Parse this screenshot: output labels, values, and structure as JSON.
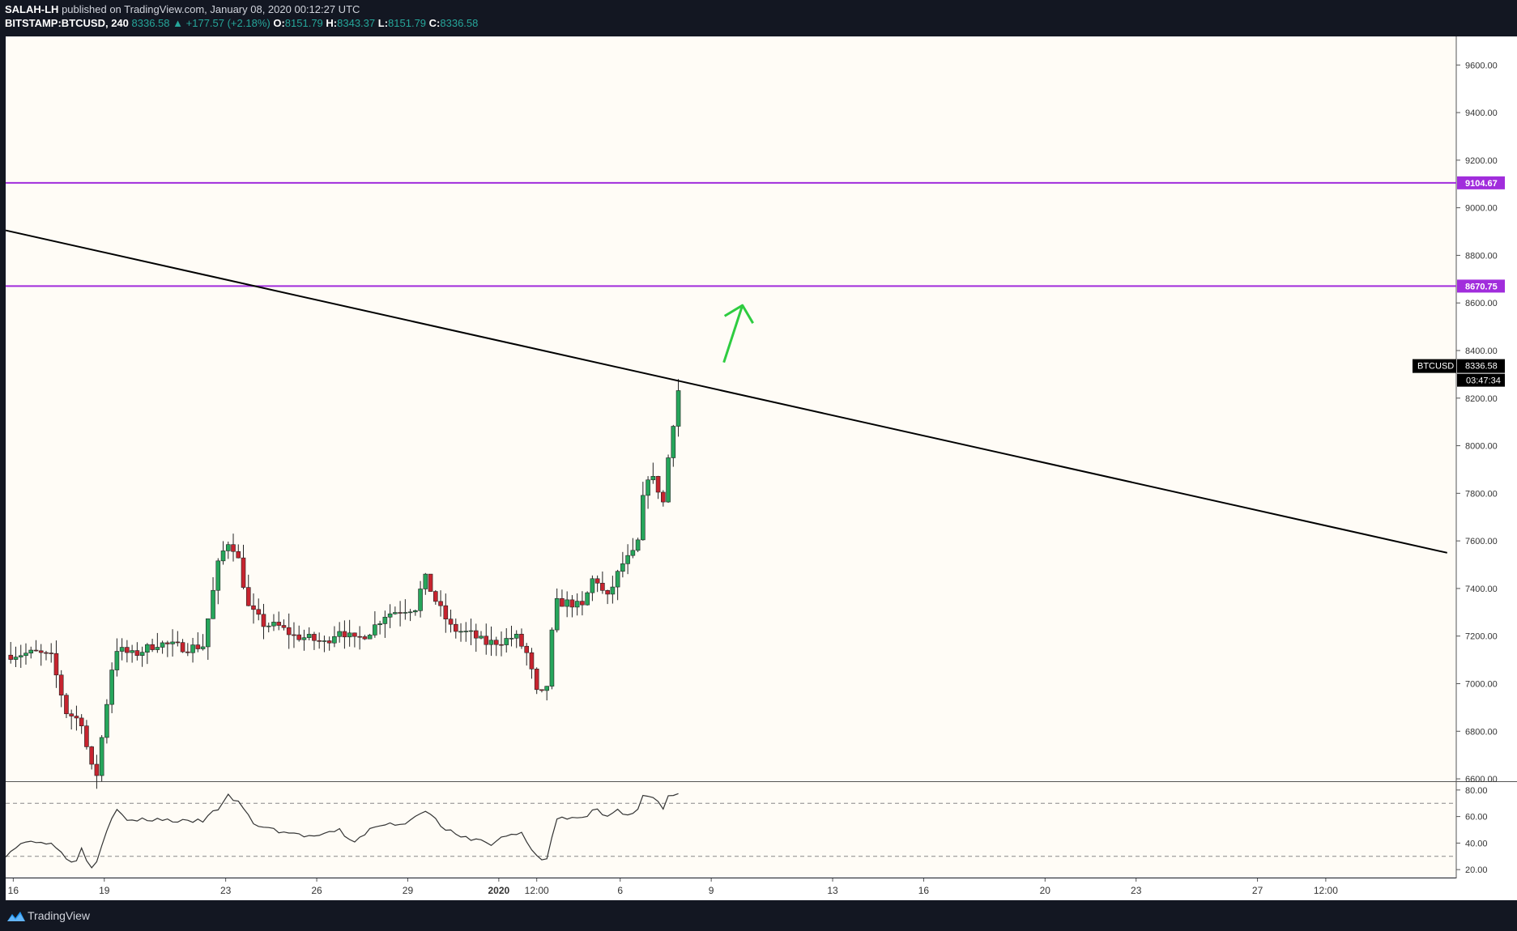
{
  "header": {
    "author": "SALAH-LH",
    "published": "published on TradingView.com, January 08, 2020 00:12:27 UTC",
    "symbol": "BITSTAMP:BTCUSD, 240",
    "last": "8336.58",
    "change": "+177.57 (+2.18%)",
    "o_label": "O:",
    "o_val": "8151.79",
    "h_label": "H:",
    "h_val": "8343.37",
    "l_label": "L:",
    "l_val": "8151.79",
    "c_label": "C:",
    "c_val": "8336.58"
  },
  "footer": {
    "brand": "TradingView"
  },
  "colors": {
    "up": "#26a65b",
    "down": "#c7242f",
    "level": "#a12ddc",
    "trend": "#000000",
    "arrow": "#2ecc40",
    "plot_bg": "#fffcf6",
    "rsi_line": "#333333"
  },
  "chart_data": {
    "type": "candlestick",
    "price_axis": {
      "ticks": [
        6600,
        6800,
        7000,
        7200,
        7400,
        7600,
        7800,
        8000,
        8200,
        8400,
        8600,
        8800,
        9000,
        9200,
        9400,
        9600
      ],
      "range": [
        6590,
        9720
      ]
    },
    "x_axis": {
      "range": [
        0,
        28.3
      ],
      "labels": [
        {
          "t": 0.25,
          "text": "16"
        },
        {
          "t": 3.25,
          "text": "19"
        },
        {
          "t": 7.25,
          "text": "23"
        },
        {
          "t": 10.25,
          "text": "26"
        },
        {
          "t": 13.25,
          "text": "29"
        },
        {
          "t": 16.25,
          "text": "2020"
        },
        {
          "t": 17.5,
          "text": "12:00"
        },
        {
          "t": 20.25,
          "text": "6"
        },
        {
          "t": 23.25,
          "text": "9"
        },
        {
          "t": 27.25,
          "text": "13"
        },
        {
          "t": 30.25,
          "text": "16"
        },
        {
          "t": 34.25,
          "text": "20"
        },
        {
          "t": 37.25,
          "text": "23"
        },
        {
          "t": 41.25,
          "text": "27"
        },
        {
          "t": 43.5,
          "text": "12:00"
        }
      ]
    },
    "levels": [
      {
        "price": 9104.67,
        "label": "9104.67"
      },
      {
        "price": 8670.75,
        "label": "8670.75"
      }
    ],
    "trendline": {
      "from": {
        "t": 0,
        "price": 8905
      },
      "to": {
        "t": 47.5,
        "price": 7550
      }
    },
    "current": {
      "symbol": "BTCUSD",
      "price": 8336.58,
      "label": "8336.58",
      "countdown": "03:47:34"
    },
    "rsi": {
      "ticks": [
        20,
        40,
        60,
        80
      ],
      "labels": [
        "20.00",
        "40.00",
        "60.00",
        "80.00"
      ],
      "bands": [
        70,
        30
      ],
      "range": [
        14,
        86
      ]
    },
    "anchors": [
      {
        "t": 0,
        "p": 7120
      },
      {
        "t": 1.0,
        "p": 7130
      },
      {
        "t": 1.5,
        "p": 7110
      },
      {
        "t": 2.0,
        "p": 6880
      },
      {
        "t": 2.5,
        "p": 6840
      },
      {
        "t": 2.8,
        "p": 6650
      },
      {
        "t": 3.0,
        "p": 6620
      },
      {
        "t": 3.25,
        "p": 6850
      },
      {
        "t": 3.6,
        "p": 7150
      },
      {
        "t": 4.2,
        "p": 7120
      },
      {
        "t": 5.0,
        "p": 7170
      },
      {
        "t": 6.0,
        "p": 7150
      },
      {
        "t": 6.5,
        "p": 7160
      },
      {
        "t": 7.0,
        "p": 7500
      },
      {
        "t": 7.3,
        "p": 7600
      },
      {
        "t": 7.6,
        "p": 7560
      },
      {
        "t": 8.0,
        "p": 7320
      },
      {
        "t": 8.5,
        "p": 7250
      },
      {
        "t": 9.0,
        "p": 7240
      },
      {
        "t": 9.5,
        "p": 7200
      },
      {
        "t": 10.0,
        "p": 7190
      },
      {
        "t": 10.5,
        "p": 7170
      },
      {
        "t": 11.0,
        "p": 7230
      },
      {
        "t": 11.5,
        "p": 7180
      },
      {
        "t": 12.0,
        "p": 7220
      },
      {
        "t": 12.5,
        "p": 7290
      },
      {
        "t": 13.0,
        "p": 7310
      },
      {
        "t": 13.5,
        "p": 7320
      },
      {
        "t": 13.8,
        "p": 7450
      },
      {
        "t": 14.2,
        "p": 7340
      },
      {
        "t": 14.7,
        "p": 7230
      },
      {
        "t": 15.3,
        "p": 7210
      },
      {
        "t": 15.8,
        "p": 7170
      },
      {
        "t": 16.4,
        "p": 7180
      },
      {
        "t": 16.8,
        "p": 7200
      },
      {
        "t": 17.2,
        "p": 7120
      },
      {
        "t": 17.5,
        "p": 6960
      },
      {
        "t": 17.8,
        "p": 6950
      },
      {
        "t": 18.1,
        "p": 7340
      },
      {
        "t": 18.6,
        "p": 7340
      },
      {
        "t": 19.0,
        "p": 7320
      },
      {
        "t": 19.4,
        "p": 7460
      },
      {
        "t": 19.8,
        "p": 7350
      },
      {
        "t": 20.3,
        "p": 7500
      },
      {
        "t": 20.8,
        "p": 7560
      },
      {
        "t": 21.1,
        "p": 7880
      },
      {
        "t": 21.4,
        "p": 7850
      },
      {
        "t": 21.7,
        "p": 7750
      },
      {
        "t": 21.9,
        "p": 8050
      },
      {
        "t": 22.1,
        "p": 8150
      },
      {
        "t": 22.25,
        "p": 8336.58
      }
    ],
    "rsi_anchors": [
      {
        "t": 0,
        "v": 31
      },
      {
        "t": 0.5,
        "v": 40
      },
      {
        "t": 1.2,
        "v": 42
      },
      {
        "t": 1.7,
        "v": 37
      },
      {
        "t": 2.0,
        "v": 28
      },
      {
        "t": 2.3,
        "v": 26
      },
      {
        "t": 2.5,
        "v": 36
      },
      {
        "t": 2.8,
        "v": 22
      },
      {
        "t": 3.0,
        "v": 27
      },
      {
        "t": 3.25,
        "v": 45
      },
      {
        "t": 3.6,
        "v": 66
      },
      {
        "t": 4.0,
        "v": 57
      },
      {
        "t": 5.0,
        "v": 58
      },
      {
        "t": 6.0,
        "v": 56
      },
      {
        "t": 6.5,
        "v": 57
      },
      {
        "t": 7.0,
        "v": 66
      },
      {
        "t": 7.3,
        "v": 76
      },
      {
        "t": 7.7,
        "v": 70
      },
      {
        "t": 8.2,
        "v": 54
      },
      {
        "t": 9.0,
        "v": 49
      },
      {
        "t": 10.0,
        "v": 45
      },
      {
        "t": 10.5,
        "v": 46
      },
      {
        "t": 11.0,
        "v": 50
      },
      {
        "t": 11.4,
        "v": 40
      },
      {
        "t": 12.0,
        "v": 50
      },
      {
        "t": 12.5,
        "v": 54
      },
      {
        "t": 13.2,
        "v": 55
      },
      {
        "t": 13.8,
        "v": 66
      },
      {
        "t": 14.4,
        "v": 52
      },
      {
        "t": 15.0,
        "v": 44
      },
      {
        "t": 15.5,
        "v": 43
      },
      {
        "t": 16.0,
        "v": 39
      },
      {
        "t": 16.5,
        "v": 46
      },
      {
        "t": 17.0,
        "v": 47
      },
      {
        "t": 17.3,
        "v": 36
      },
      {
        "t": 17.6,
        "v": 27
      },
      {
        "t": 17.9,
        "v": 30
      },
      {
        "t": 18.1,
        "v": 58
      },
      {
        "t": 18.6,
        "v": 59
      },
      {
        "t": 19.1,
        "v": 58
      },
      {
        "t": 19.4,
        "v": 67
      },
      {
        "t": 19.8,
        "v": 60
      },
      {
        "t": 20.1,
        "v": 65
      },
      {
        "t": 20.5,
        "v": 62
      },
      {
        "t": 20.8,
        "v": 65
      },
      {
        "t": 21.0,
        "v": 75
      },
      {
        "t": 21.4,
        "v": 74
      },
      {
        "t": 21.65,
        "v": 64
      },
      {
        "t": 21.8,
        "v": 74
      },
      {
        "t": 22.0,
        "v": 76
      },
      {
        "t": 22.25,
        "v": 80
      }
    ]
  }
}
